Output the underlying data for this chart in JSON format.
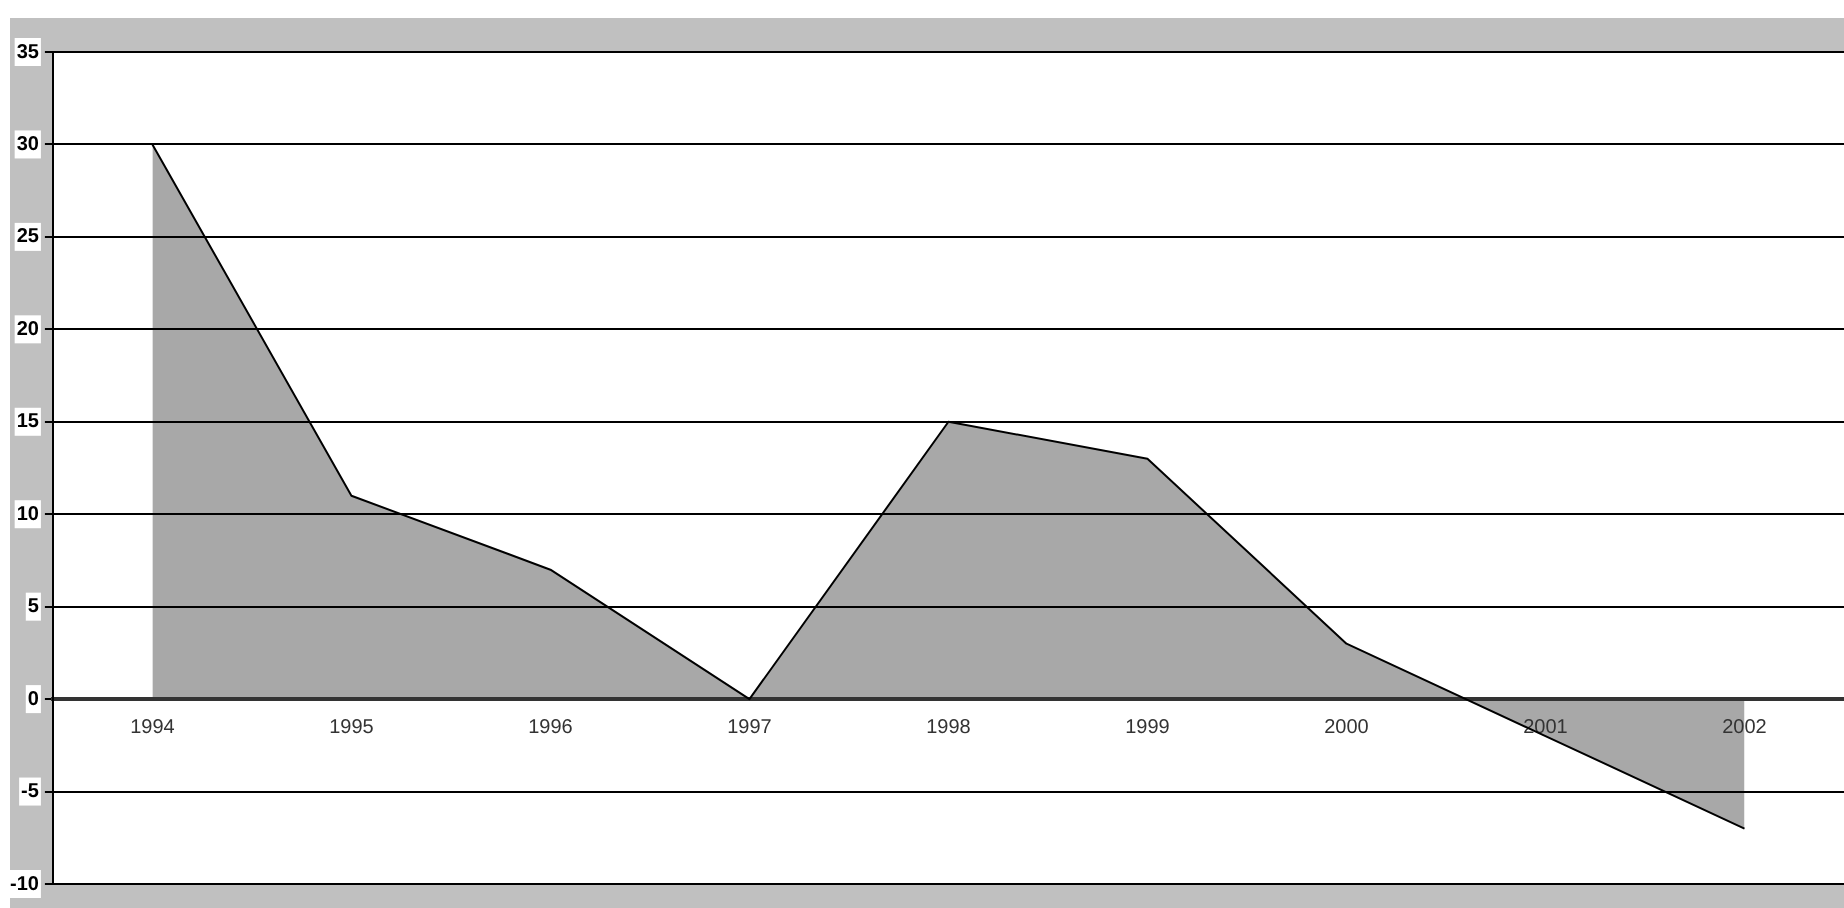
{
  "chart_data": {
    "type": "area",
    "categories": [
      "1994",
      "1995",
      "1996",
      "1997",
      "1998",
      "1999",
      "2000",
      "2001",
      "2002"
    ],
    "series": [
      {
        "color": "#a8a8a8",
        "values": [
          30,
          11,
          7,
          0,
          15,
          13,
          3,
          -2,
          -7
        ]
      }
    ],
    "ylim": [
      -10,
      35
    ],
    "yticks": [
      -10,
      -5,
      0,
      5,
      10,
      15,
      20,
      25,
      30,
      35
    ],
    "grid": "y",
    "legend": false
  }
}
